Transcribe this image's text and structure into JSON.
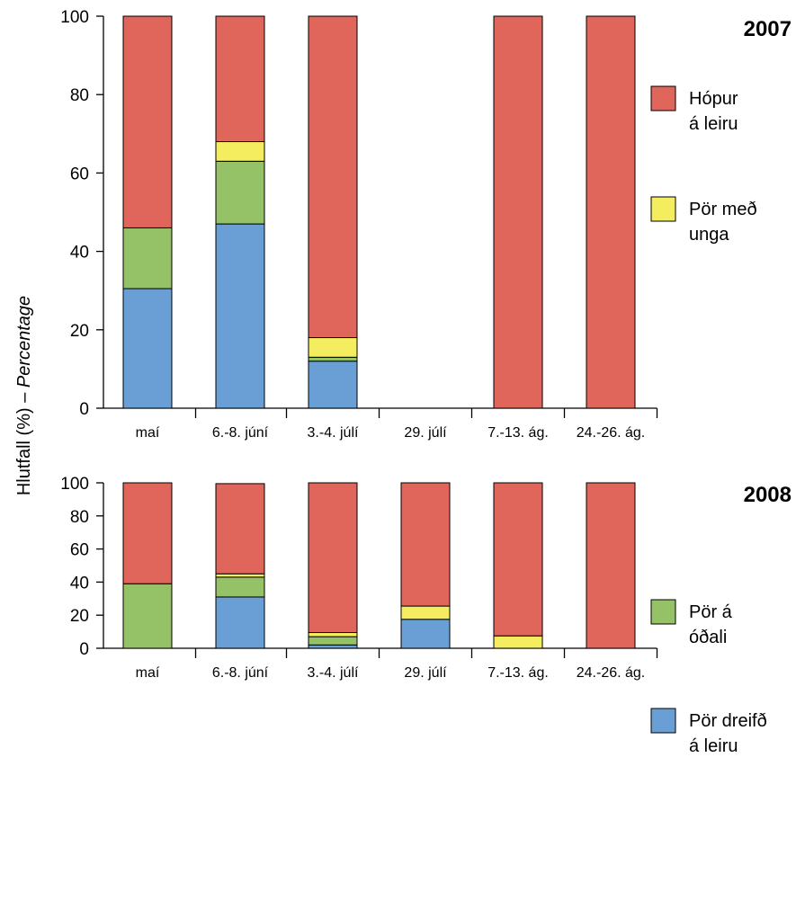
{
  "chart_data": {
    "type": "bar",
    "stacked": true,
    "ylabel": "Hlutfall (%) – ",
    "ylabel_italic": "Percentage",
    "ylim": [
      0,
      100
    ],
    "yticks": [
      "0",
      "20",
      "40",
      "60",
      "80",
      "100"
    ],
    "categories": [
      "maí",
      "6.-8. júní",
      "3.-4. júlí",
      "29. júlí",
      "7.-13. ág.",
      "24.-26. ág."
    ],
    "series_order_bottom_to_top": [
      "blue",
      "green",
      "yellow",
      "red"
    ],
    "series": [
      {
        "key": "red",
        "name": "Hópur á leiru",
        "legend_lines": [
          "Hópur",
          "á leiru"
        ],
        "color": "#e0655a"
      },
      {
        "key": "yellow",
        "name": "Pör með unga",
        "legend_lines": [
          "Pör með",
          "unga"
        ],
        "color": "#f4ed5f"
      },
      {
        "key": "green",
        "name": "Pör á óðali",
        "legend_lines": [
          "Pör á",
          "óðali"
        ],
        "color": "#95c266"
      },
      {
        "key": "blue",
        "name": "Pör dreifð á leiru",
        "legend_lines": [
          "Pör dreifð",
          "á leiru"
        ],
        "color": "#699fd4"
      }
    ],
    "panels": [
      {
        "year": "2007",
        "values": {
          "blue": [
            30.5,
            47,
            12,
            null,
            0,
            0
          ],
          "green": [
            15.5,
            16,
            1,
            null,
            0,
            0
          ],
          "yellow": [
            0,
            5,
            5,
            null,
            0,
            0
          ],
          "red": [
            54,
            32,
            82,
            null,
            100,
            100
          ]
        }
      },
      {
        "year": "2008",
        "values": {
          "blue": [
            0,
            31,
            2,
            17.5,
            0,
            0
          ],
          "green": [
            39,
            12,
            5,
            0,
            0,
            0
          ],
          "yellow": [
            0,
            2,
            2.5,
            8,
            7.5,
            0
          ],
          "red": [
            61,
            54.5,
            90.5,
            74.5,
            92.5,
            100
          ]
        }
      }
    ]
  }
}
